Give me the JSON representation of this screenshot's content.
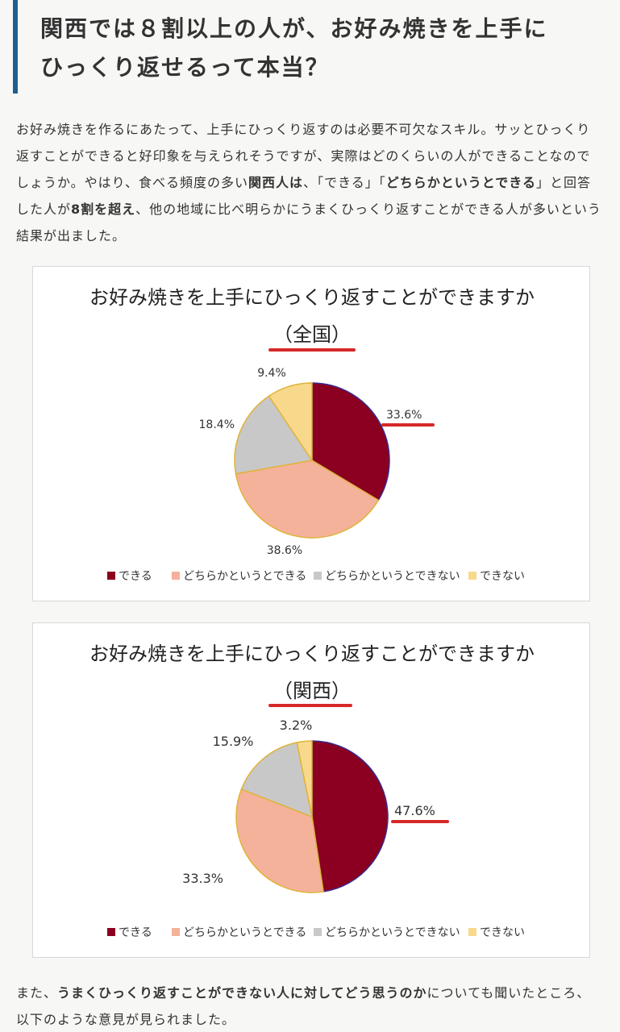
{
  "article": {
    "heading_line1": "関西では８割以上の人が、お好み焼きを上手に",
    "heading_line2": "ひっくり返せるって本当？",
    "paragraph1": [
      {
        "text": "お好み焼きを作るにあたって、上手にひっくり返すのは必要不可欠なスキル。サッとひっくり返すことができると好印象を与えられそうですが、実際はどのくらいの人ができることなのでしょうか。やはり、食べる頻度の多い",
        "bold": false
      },
      {
        "text": "関西人は",
        "bold": true
      },
      {
        "text": "、「できる」「",
        "bold": false
      },
      {
        "text": "どちらかというとできる",
        "bold": true
      },
      {
        "text": "」と回答した人が",
        "bold": false
      },
      {
        "text": "8割を超え",
        "bold": true
      },
      {
        "text": "、他の地域に比べ明らかにうまくひっくり返すことができる人が多いという結果が出ました。",
        "bold": false
      }
    ],
    "paragraph2": [
      {
        "text": "また、",
        "bold": false
      },
      {
        "text": "うまくひっくり返すことができない人に対してどう思うのか",
        "bold": true
      },
      {
        "text": "についても聞いたところ、以下のような意見が見られました。",
        "bold": false
      }
    ]
  },
  "chart_colors": {
    "できる": "#8b0020",
    "どちらかというとできる": "#f4b29a",
    "どちらかというとできない": "#c8c8c8",
    "できない": "#f8d98c",
    "highlight": "#d62828",
    "border_dekiru": "#3a2a8a",
    "border_others": "#e0b33a"
  },
  "chart_data": [
    {
      "type": "pie",
      "title": "お好み焼きを上手にひっくり返すことができますか",
      "subtitle": "（全国）",
      "categories": [
        "できる",
        "どちらかというとできる",
        "どちらかというとできない",
        "できない"
      ],
      "values": [
        33.6,
        38.6,
        18.4,
        9.4
      ],
      "labels": [
        "33.6%",
        "38.6%",
        "18.4%",
        "9.4%"
      ],
      "highlighted": "33.6%",
      "legend_position": "bottom"
    },
    {
      "type": "pie",
      "title": "お好み焼きを上手にひっくり返すことができますか",
      "subtitle": "（関西）",
      "categories": [
        "できる",
        "どちらかというとできる",
        "どちらかというとできない",
        "できない"
      ],
      "values": [
        47.6,
        33.3,
        15.9,
        3.2
      ],
      "labels": [
        "47.6%",
        "33.3%",
        "15.9%",
        "3.2%"
      ],
      "highlighted": "47.6%",
      "legend_position": "bottom"
    }
  ]
}
